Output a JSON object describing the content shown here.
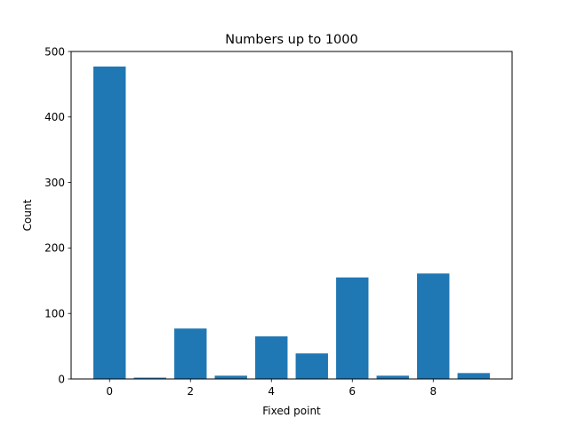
{
  "chart_data": {
    "type": "bar",
    "title": "Numbers up to 1000",
    "xlabel": "Fixed point",
    "ylabel": "Count",
    "categories": [
      0,
      1,
      2,
      3,
      4,
      5,
      6,
      7,
      8,
      9
    ],
    "values": [
      477,
      2,
      77,
      5,
      65,
      39,
      155,
      5,
      161,
      9
    ],
    "xlim": [
      -0.95,
      9.95
    ],
    "ylim": [
      0,
      500
    ],
    "xticks": [
      0,
      2,
      4,
      6,
      8
    ],
    "yticks": [
      0,
      100,
      200,
      300,
      400,
      500
    ],
    "bar_color": "#1f77b4",
    "grid": false
  }
}
